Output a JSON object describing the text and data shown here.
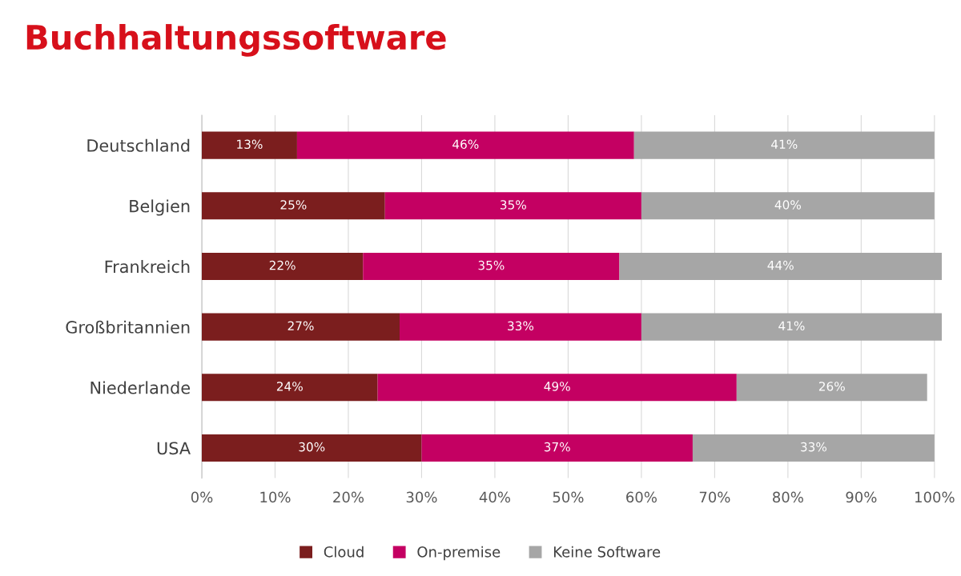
{
  "chart_data": {
    "type": "bar",
    "orientation": "horizontal",
    "stacked": true,
    "title": "Buchhaltungssoftware",
    "categories": [
      "Deutschland",
      "Belgien",
      "Frankreich",
      "Großbritannien",
      "Niederlande",
      "USA"
    ],
    "series": [
      {
        "name": "Cloud",
        "color": "#7b1e1e",
        "values": [
          13,
          25,
          22,
          27,
          24,
          30
        ],
        "value_labels": [
          "13%",
          "25%",
          "22%",
          "27%",
          "24%",
          "30%"
        ]
      },
      {
        "name": "On-premise",
        "color": "#c40062",
        "values": [
          46,
          35,
          35,
          33,
          49,
          37
        ],
        "value_labels": [
          "46%",
          "35%",
          "35%",
          "33%",
          "49%",
          "37%"
        ]
      },
      {
        "name": "Keine Software",
        "color": "#a6a6a6",
        "values": [
          41,
          40,
          44,
          41,
          26,
          33
        ],
        "value_labels": [
          "41%",
          "40%",
          "44%",
          "41%",
          "26%",
          "33%"
        ]
      }
    ],
    "xlim": [
      0,
      101
    ],
    "xticks": [
      {
        "value": 0,
        "label": "0%"
      },
      {
        "value": 10,
        "label": "10%"
      },
      {
        "value": 20,
        "label": "20%"
      },
      {
        "value": 30,
        "label": "30%"
      },
      {
        "value": 40,
        "label": "40%"
      },
      {
        "value": 50,
        "label": "50%"
      },
      {
        "value": 60,
        "label": "60%"
      },
      {
        "value": 70,
        "label": "70%"
      },
      {
        "value": 80,
        "label": "80%"
      },
      {
        "value": 90,
        "label": "90%"
      },
      {
        "value": 100,
        "label": "100%"
      }
    ],
    "grid": "x",
    "legend": "bottom"
  }
}
